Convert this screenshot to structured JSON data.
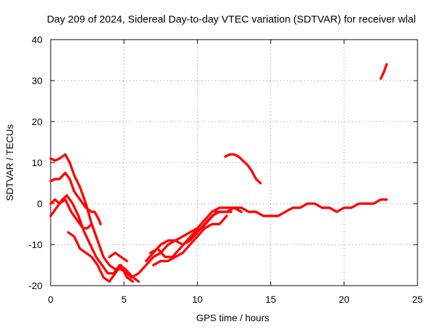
{
  "chart_data": {
    "type": "line",
    "title": "Day 209 of 2024, Sidereal Day-to-day VTEC variation (SDTVAR) for receiver wlal",
    "xlabel": "GPS time / hours",
    "ylabel": "SDTVAR / TECUs",
    "xlim": [
      0,
      25
    ],
    "ylim": [
      -20,
      40
    ],
    "xticks": [
      0,
      5,
      10,
      15,
      20,
      25
    ],
    "yticks": [
      -20,
      -10,
      0,
      10,
      20,
      30,
      40
    ],
    "grid": true,
    "color": "#ff0000",
    "series": [
      {
        "name": "arc-1",
        "x": [
          0.0,
          0.3,
          0.6,
          1.0,
          1.3,
          1.6,
          2.0,
          2.4,
          2.8,
          3.2,
          3.6,
          4.0,
          4.4,
          4.8,
          5.2,
          5.5
        ],
        "y": [
          11,
          10.5,
          11,
          12,
          10,
          7,
          4,
          0,
          -5,
          -9,
          -13,
          -15,
          -16,
          -16,
          -17,
          -18
        ]
      },
      {
        "name": "arc-2",
        "x": [
          0.0,
          0.3,
          0.6,
          1.0,
          1.3,
          1.6,
          2.0,
          2.4,
          2.8,
          3.0,
          3.3,
          3.4
        ],
        "y": [
          5.5,
          6,
          6,
          7.5,
          6,
          3,
          1,
          -1,
          -2,
          -2,
          -4,
          -5
        ]
      },
      {
        "name": "arc-3",
        "x": [
          0.0,
          0.4,
          0.8,
          1.1,
          1.5,
          1.9,
          2.3,
          2.7,
          3.1,
          3.5,
          3.9,
          4.3,
          4.7,
          5.1,
          5.6,
          6.0
        ],
        "y": [
          -3,
          -1,
          1,
          2,
          0,
          -3,
          -7,
          -10,
          -13,
          -15,
          -17,
          -17,
          -15,
          -16,
          -18,
          -19
        ]
      },
      {
        "name": "arc-4",
        "x": [
          0.0,
          0.3,
          0.6,
          1.0,
          1.4,
          1.8,
          2.2,
          2.5,
          2.8,
          3.0
        ],
        "y": [
          0,
          1,
          0,
          1,
          -2,
          -4,
          -6,
          -6,
          -5,
          -7
        ]
      },
      {
        "name": "arc-5",
        "x": [
          1.2,
          1.6,
          2.0,
          2.4,
          2.8,
          3.2,
          3.6,
          4.0,
          4.4,
          4.8,
          5.2,
          5.6
        ],
        "y": [
          -7,
          -8,
          -11,
          -12,
          -13,
          -15,
          -18,
          -19,
          -17,
          -15,
          -18,
          -19
        ]
      },
      {
        "name": "arc-6",
        "x": [
          4.0,
          4.4,
          4.8,
          5.2
        ],
        "y": [
          -13,
          -12,
          -13,
          -14
        ]
      },
      {
        "name": "arc-7",
        "x": [
          5.5,
          6.0,
          6.5,
          7.0,
          7.5,
          8.0,
          8.5,
          9.0,
          9.5,
          10.0,
          10.5,
          11.0,
          11.5,
          12.0,
          12.5,
          13.0,
          13.5,
          14.0,
          14.5,
          15.0,
          15.5,
          16.0,
          16.5,
          17.0,
          17.5,
          18.0,
          18.5,
          19.0,
          19.5,
          20.0,
          20.5,
          21.0,
          21.5,
          22.0,
          22.5,
          22.9
        ],
        "y": [
          -18,
          -17,
          -15,
          -13,
          -12,
          -10,
          -9,
          -8,
          -7,
          -6,
          -4,
          -2,
          -1,
          -1,
          -1,
          -1,
          -2,
          -2,
          -3,
          -3,
          -3,
          -2,
          -1,
          -1,
          0,
          0,
          -1,
          -1,
          -2,
          -1,
          -1,
          0,
          0,
          0,
          1,
          1
        ]
      },
      {
        "name": "arc-8",
        "x": [
          6.5,
          7.0,
          7.5,
          8.0,
          8.5,
          9.0,
          9.5,
          10.0,
          10.5,
          11.0,
          11.5,
          12.0,
          12.5,
          13.0
        ],
        "y": [
          -14,
          -12,
          -10,
          -9,
          -9,
          -10,
          -9,
          -7,
          -5,
          -3,
          -2,
          -2,
          -1,
          -2
        ]
      },
      {
        "name": "arc-9",
        "x": [
          7.0,
          7.5,
          8.0,
          8.5,
          9.0,
          9.5,
          10.0,
          10.5,
          11.0,
          11.5,
          12.0
        ],
        "y": [
          -15,
          -14,
          -14,
          -13,
          -12,
          -10,
          -8,
          -6,
          -5,
          -5,
          -3
        ]
      },
      {
        "name": "arc-10",
        "x": [
          6.8,
          7.3,
          7.8,
          8.3,
          8.8,
          9.3,
          9.8,
          10.3,
          10.8,
          11.3,
          11.8,
          12.3
        ],
        "y": [
          -12,
          -11,
          -13,
          -13,
          -11,
          -9,
          -7,
          -6,
          -4,
          -2,
          -2,
          -2
        ]
      },
      {
        "name": "arc-11",
        "x": [
          11.9,
          12.2,
          12.5,
          12.8,
          13.1,
          13.4,
          13.7,
          14.0,
          14.3
        ],
        "y": [
          11.5,
          12,
          12,
          11.5,
          10.5,
          9.5,
          8,
          6,
          5
        ]
      },
      {
        "name": "arc-12",
        "x": [
          22.5,
          22.7,
          22.9
        ],
        "y": [
          30.5,
          32,
          34
        ]
      }
    ]
  }
}
